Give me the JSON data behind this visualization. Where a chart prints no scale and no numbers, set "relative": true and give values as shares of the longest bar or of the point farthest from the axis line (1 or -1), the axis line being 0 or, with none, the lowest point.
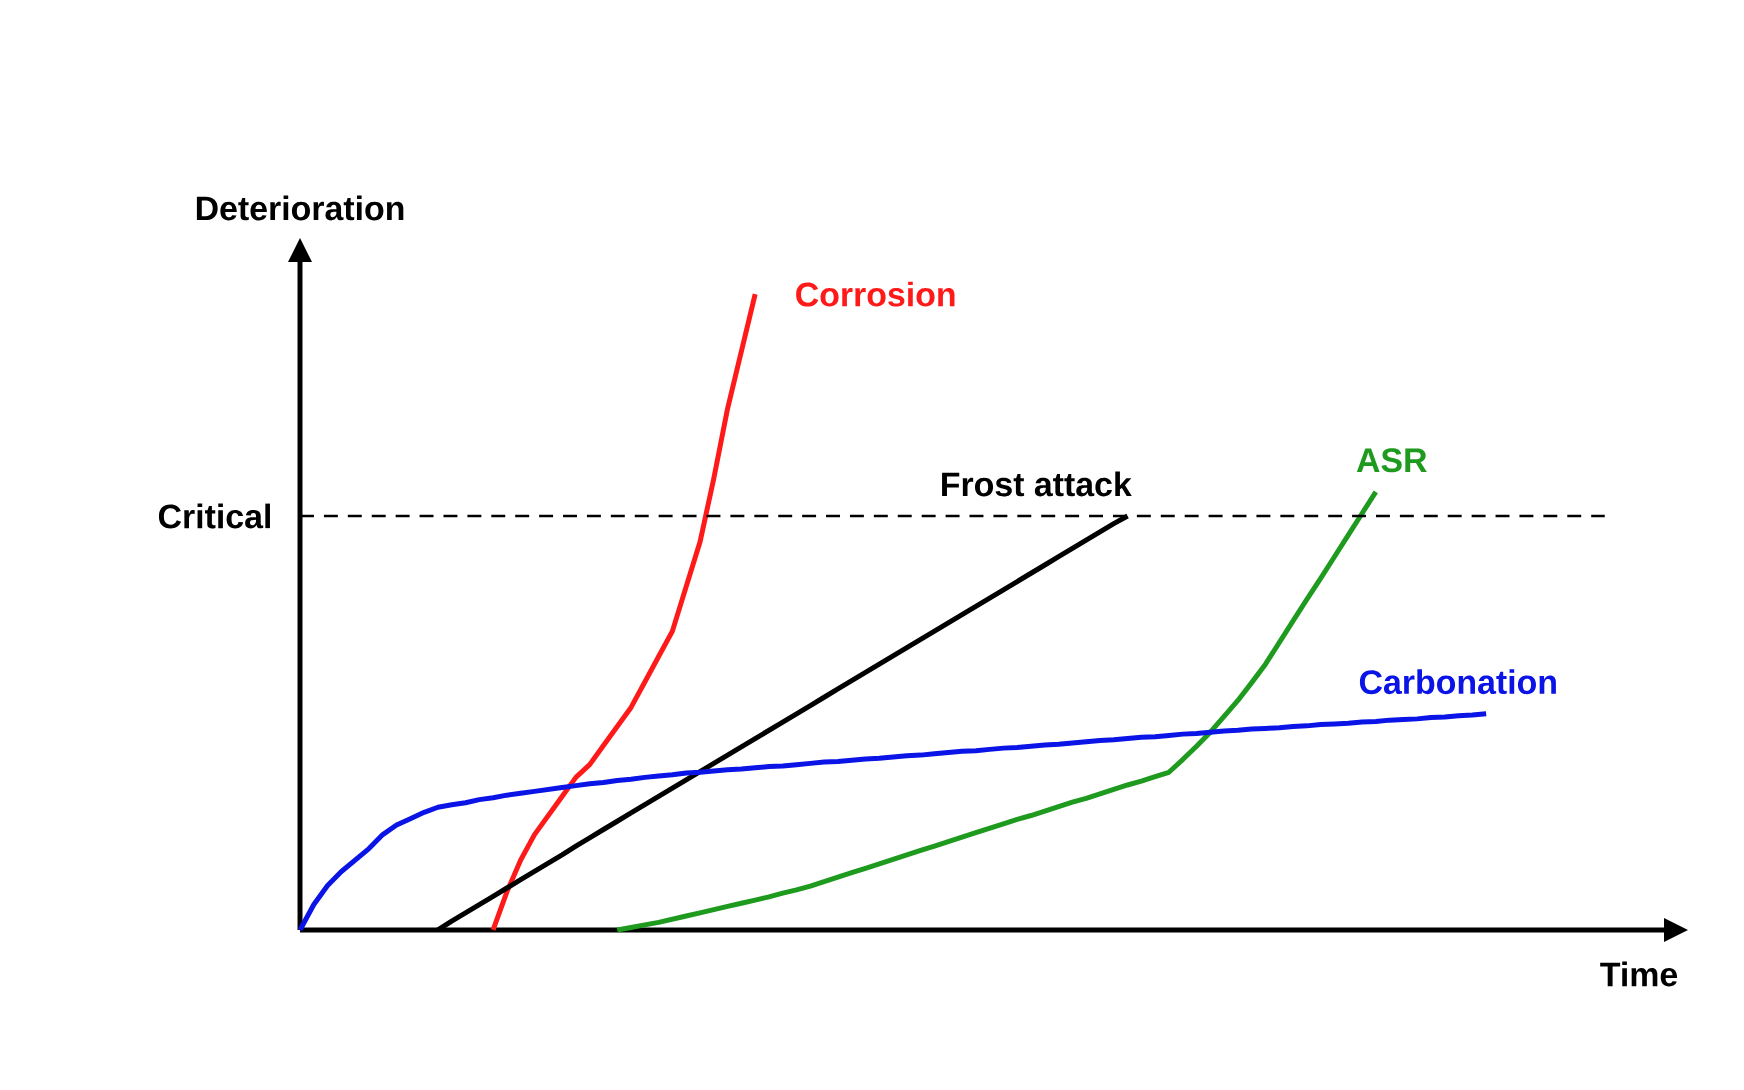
{
  "chart_data": {
    "type": "line",
    "relative": true,
    "xlabel": "Time",
    "ylabel": "Deterioration",
    "marker": "none",
    "line_style": "solid",
    "categories": [
      null,
      null,
      null,
      null,
      null,
      null,
      null,
      null,
      null,
      null,
      null,
      null,
      null,
      null,
      null,
      null,
      null,
      null,
      null,
      null,
      null,
      null,
      null,
      null,
      null,
      null,
      null,
      null,
      null,
      null,
      null,
      null,
      null,
      null,
      null,
      null,
      null,
      null,
      null,
      null,
      null,
      null,
      null,
      null,
      null,
      null,
      null,
      null,
      null,
      null,
      null,
      null,
      null,
      null,
      null,
      null,
      null,
      null,
      null,
      null,
      null,
      null,
      null,
      null,
      null,
      null,
      null,
      null,
      null,
      null,
      null,
      null,
      null,
      null,
      null,
      null,
      null,
      null,
      null,
      null,
      null,
      null,
      null,
      null,
      null,
      null,
      null
    ],
    "ref_lines": [
      {
        "axis": "y",
        "value": 0.651,
        "label": "Critical",
        "color": "#000000",
        "line_style": "dashed"
      }
    ],
    "series": [
      {
        "name": "Corrosion",
        "color": "#ff1a1a",
        "values": [
          null,
          null,
          null,
          null,
          null,
          null,
          null,
          null,
          null,
          null,
          null,
          null,
          null,
          null,
          0,
          0.06,
          0.11,
          0.15,
          0.18,
          0.21,
          0.24,
          0.26,
          0.29,
          0.32,
          0.35,
          0.39,
          0.43,
          0.47,
          0.54,
          0.61,
          0.71,
          0.82,
          0.91,
          1.0,
          null,
          null,
          null,
          null,
          null,
          null,
          null,
          null,
          null,
          null,
          null,
          null,
          null,
          null,
          null,
          null,
          null,
          null,
          null,
          null,
          null,
          null,
          null,
          null,
          null,
          null,
          null,
          null,
          null,
          null,
          null,
          null,
          null,
          null,
          null,
          null,
          null,
          null,
          null,
          null,
          null,
          null,
          null,
          null,
          null,
          null,
          null,
          null,
          null,
          null,
          null,
          null,
          null
        ]
      },
      {
        "name": "Frost attack",
        "color": "#000000",
        "values": [
          null,
          null,
          null,
          null,
          null,
          null,
          null,
          null,
          null,
          null,
          0,
          0.014,
          0.027,
          0.04,
          0.053,
          0.066,
          0.079,
          0.092,
          0.105,
          0.118,
          0.132,
          0.145,
          0.158,
          0.171,
          0.184,
          0.197,
          0.21,
          0.223,
          0.236,
          0.249,
          0.262,
          0.275,
          0.288,
          0.301,
          0.314,
          0.327,
          0.34,
          0.353,
          0.366,
          0.379,
          0.392,
          0.405,
          0.418,
          0.431,
          0.444,
          0.457,
          0.47,
          0.483,
          0.496,
          0.509,
          0.522,
          0.535,
          0.548,
          0.561,
          0.574,
          0.587,
          0.6,
          0.613,
          0.626,
          0.639,
          0.651,
          null,
          null,
          null,
          null,
          null,
          null,
          null,
          null,
          null,
          null,
          null,
          null,
          null,
          null,
          null,
          null,
          null,
          null,
          null,
          null,
          null,
          null,
          null,
          null,
          null,
          null
        ]
      },
      {
        "name": "ASR",
        "color": "#1e9a1e",
        "values": [
          null,
          null,
          null,
          null,
          null,
          null,
          null,
          null,
          null,
          null,
          null,
          null,
          null,
          null,
          null,
          null,
          null,
          null,
          null,
          null,
          null,
          null,
          null,
          0,
          0.004,
          0.008,
          0.012,
          0.017,
          0.022,
          0.027,
          0.032,
          0.037,
          0.042,
          0.047,
          0.052,
          0.058,
          0.063,
          0.069,
          0.076,
          0.083,
          0.09,
          0.097,
          0.104,
          0.111,
          0.118,
          0.125,
          0.132,
          0.139,
          0.146,
          0.153,
          0.16,
          0.167,
          0.174,
          0.18,
          0.187,
          0.194,
          0.201,
          0.207,
          0.214,
          0.221,
          0.228,
          0.234,
          0.241,
          0.248,
          0.268,
          0.289,
          0.311,
          0.336,
          0.361,
          0.389,
          0.418,
          0.452,
          0.486,
          0.52,
          0.553,
          0.587,
          0.621,
          0.655,
          0.689,
          null,
          null,
          null,
          null,
          null,
          null,
          null,
          null
        ]
      },
      {
        "name": "Carbonation",
        "color": "#0a14e6",
        "values": [
          0,
          0.04,
          0.07,
          0.092,
          0.11,
          0.128,
          0.15,
          0.165,
          0.175,
          0.185,
          0.193,
          0.197,
          0.2,
          0.205,
          0.208,
          0.212,
          0.215,
          0.218,
          0.221,
          0.224,
          0.227,
          0.23,
          0.232,
          0.235,
          0.237,
          0.24,
          0.242,
          0.244,
          0.247,
          0.248,
          0.25,
          0.252,
          0.253,
          0.255,
          0.257,
          0.258,
          0.26,
          0.262,
          0.264,
          0.265,
          0.267,
          0.269,
          0.27,
          0.272,
          0.274,
          0.275,
          0.277,
          0.279,
          0.281,
          0.282,
          0.284,
          0.286,
          0.287,
          0.289,
          0.291,
          0.292,
          0.294,
          0.296,
          0.298,
          0.299,
          0.301,
          0.303,
          0.304,
          0.306,
          0.308,
          0.309,
          0.311,
          0.313,
          0.314,
          0.316,
          0.317,
          0.318,
          0.32,
          0.321,
          0.323,
          0.324,
          0.325,
          0.327,
          0.328,
          0.33,
          0.331,
          0.332,
          0.334,
          0.335,
          0.337,
          0.338,
          0.34
        ]
      }
    ]
  }
}
